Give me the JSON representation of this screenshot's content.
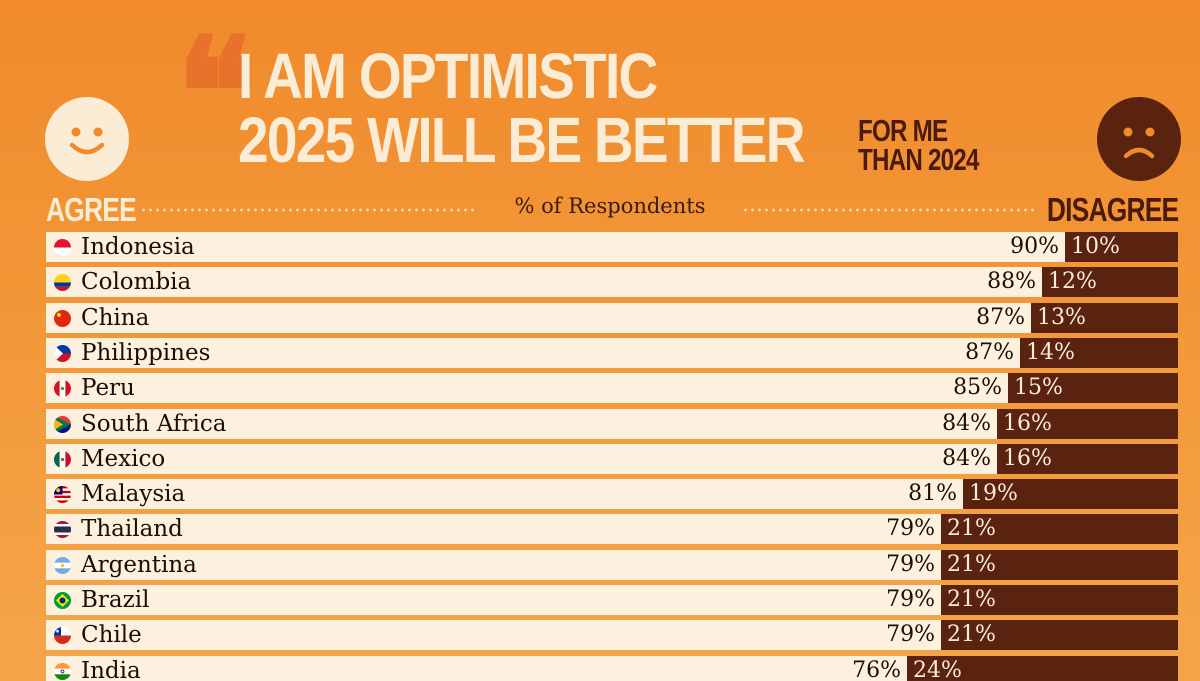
{
  "header": {
    "quote_mark": "❝",
    "title_line_1": "I AM OPTIMISTIC",
    "title_line_2": "2025 WILL BE BETTER",
    "subtitle_line_1": "FOR ME",
    "subtitle_line_2": "THAN 2024"
  },
  "legend": {
    "agree_label": "AGREE",
    "disagree_label": "DISAGREE",
    "axis_label": "% of Respondents"
  },
  "colors": {
    "background": "#f08a2c",
    "agree_bar": "#fcf1df",
    "disagree_bar": "#5a2310",
    "title_text": "#fbecd6"
  },
  "chart_data": {
    "type": "bar",
    "orientation": "horizontal-stacked",
    "xlabel": "% of Respondents",
    "xlim": [
      0,
      100
    ],
    "categories": [
      "Indonesia",
      "Colombia",
      "China",
      "Philippines",
      "Peru",
      "South Africa",
      "Mexico",
      "Malaysia",
      "Thailand",
      "Argentina",
      "Brazil",
      "Chile",
      "India"
    ],
    "series": [
      {
        "name": "AGREE",
        "values": [
          90,
          88,
          87,
          87,
          85,
          84,
          84,
          81,
          79,
          79,
          79,
          79,
          76
        ],
        "labels": [
          "90%",
          "88%",
          "87%",
          "87%",
          "85%",
          "84%",
          "84%",
          "81%",
          "79%",
          "79%",
          "79%",
          "79%",
          "76%"
        ]
      },
      {
        "name": "DISAGREE",
        "values": [
          10,
          12,
          13,
          14,
          15,
          16,
          16,
          19,
          21,
          21,
          21,
          21,
          24
        ],
        "labels": [
          "10%",
          "12%",
          "13%",
          "14%",
          "15%",
          "16%",
          "16%",
          "19%",
          "21%",
          "21%",
          "21%",
          "21%",
          "24%"
        ]
      }
    ],
    "flag_icons": [
      "indonesia-flag-icon",
      "colombia-flag-icon",
      "china-flag-icon",
      "philippines-flag-icon",
      "peru-flag-icon",
      "south-africa-flag-icon",
      "mexico-flag-icon",
      "malaysia-flag-icon",
      "thailand-flag-icon",
      "argentina-flag-icon",
      "brazil-flag-icon",
      "chile-flag-icon",
      "india-flag-icon"
    ]
  }
}
